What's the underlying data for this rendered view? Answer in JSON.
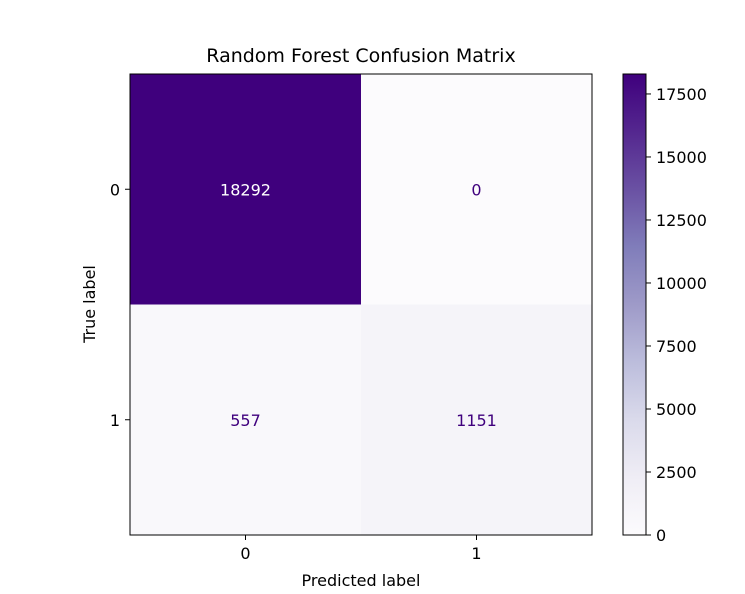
{
  "chart_data": {
    "type": "heatmap",
    "title": "Random Forest Confusion Matrix",
    "xlabel": "Predicted label",
    "ylabel": "True label",
    "x_tick_labels": [
      "0",
      "1"
    ],
    "y_tick_labels": [
      "0",
      "1"
    ],
    "matrix": [
      [
        18292,
        0
      ],
      [
        557,
        1151
      ]
    ],
    "cell_labels": [
      [
        "18292",
        "0"
      ],
      [
        "557",
        "1151"
      ]
    ],
    "colormap": "Purples",
    "colorbar": {
      "range": [
        0,
        18292
      ],
      "ticks": [
        0,
        2500,
        5000,
        7500,
        10000,
        12500,
        15000,
        17500
      ],
      "tick_labels": [
        "0",
        "2500",
        "5000",
        "7500",
        "10000",
        "12500",
        "15000",
        "17500"
      ]
    },
    "colors": {
      "high": "#3f007d",
      "low": "#fcfbfd",
      "text_on_dark": "#ffffff",
      "text_on_light": "#3f007d"
    },
    "grid": false
  }
}
